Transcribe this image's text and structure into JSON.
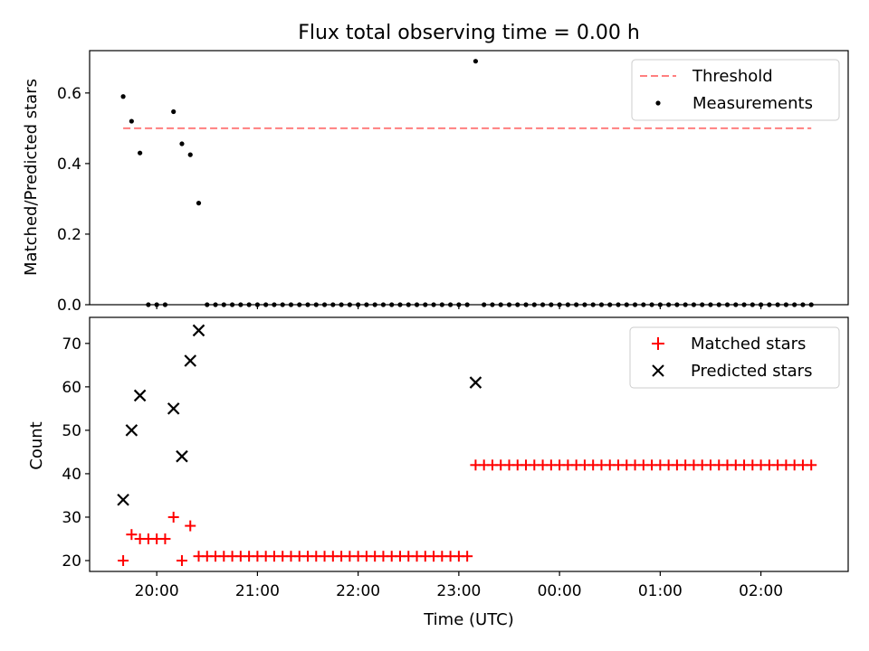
{
  "chart_data": [
    {
      "type": "scatter",
      "title": "Flux total observing time = 0.00 h",
      "ylabel": "Matched/Predicted stars",
      "xlabel": "",
      "ylim": [
        0,
        0.72
      ],
      "yticks": [
        0.0,
        0.2,
        0.4,
        0.6
      ],
      "ytick_labels": [
        "0.0",
        "0.2",
        "0.4",
        "0.6"
      ],
      "grid": false,
      "legend": "top-right",
      "series": [
        {
          "name": "Threshold",
          "kind": "dashed-line",
          "color": "#ff7f7f",
          "x": [
            "19:40",
            "02:30"
          ],
          "y": [
            0.5,
            0.5
          ]
        },
        {
          "name": "Measurements",
          "kind": "points",
          "color": "#000000",
          "x": [
            "19:40",
            "19:45",
            "19:50",
            "19:55",
            "20:00",
            "20:05",
            "20:10",
            "20:15",
            "20:20",
            "20:25",
            "20:30",
            "20:35",
            "20:40",
            "20:45",
            "20:50",
            "20:55",
            "21:00",
            "21:05",
            "21:10",
            "21:15",
            "21:20",
            "21:25",
            "21:30",
            "21:35",
            "21:40",
            "21:45",
            "21:50",
            "21:55",
            "22:00",
            "22:05",
            "22:10",
            "22:15",
            "22:20",
            "22:25",
            "22:30",
            "22:35",
            "22:40",
            "22:45",
            "22:50",
            "22:55",
            "23:00",
            "23:05",
            "23:10",
            "23:15",
            "23:20",
            "23:25",
            "23:30",
            "23:35",
            "23:40",
            "23:45",
            "23:50",
            "23:55",
            "00:00",
            "00:05",
            "00:10",
            "00:15",
            "00:20",
            "00:25",
            "00:30",
            "00:35",
            "00:40",
            "00:45",
            "00:50",
            "00:55",
            "01:00",
            "01:05",
            "01:10",
            "01:15",
            "01:20",
            "01:25",
            "01:30",
            "01:35",
            "01:40",
            "01:45",
            "01:50",
            "01:55",
            "02:00",
            "02:05",
            "02:10",
            "02:15",
            "02:20",
            "02:25",
            "02:30"
          ],
          "y": [
            0.59,
            0.52,
            0.43,
            0.0,
            0.0,
            0.0,
            0.547,
            0.456,
            0.425,
            0.288,
            0.0,
            0.0,
            0.0,
            0.0,
            0.0,
            0.0,
            0.0,
            0.0,
            0.0,
            0.0,
            0.0,
            0.0,
            0.0,
            0.0,
            0.0,
            0.0,
            0.0,
            0.0,
            0.0,
            0.0,
            0.0,
            0.0,
            0.0,
            0.0,
            0.0,
            0.0,
            0.0,
            0.0,
            0.0,
            0.0,
            0.0,
            0.0,
            0.69,
            0.0,
            0.0,
            0.0,
            0.0,
            0.0,
            0.0,
            0.0,
            0.0,
            0.0,
            0.0,
            0.0,
            0.0,
            0.0,
            0.0,
            0.0,
            0.0,
            0.0,
            0.0,
            0.0,
            0.0,
            0.0,
            0.0,
            0.0,
            0.0,
            0.0,
            0.0,
            0.0,
            0.0,
            0.0,
            0.0,
            0.0,
            0.0,
            0.0,
            0.0,
            0.0,
            0.0,
            0.0,
            0.0,
            0.0,
            0.0
          ]
        }
      ]
    },
    {
      "type": "scatter",
      "title": "",
      "ylabel": "Count",
      "xlabel": "Time (UTC)",
      "ylim": [
        17.5,
        76
      ],
      "yticks": [
        20,
        30,
        40,
        50,
        60,
        70
      ],
      "ytick_labels": [
        "20",
        "30",
        "40",
        "50",
        "60",
        "70"
      ],
      "xticks": [
        "20:00",
        "21:00",
        "22:00",
        "23:00",
        "00:00",
        "01:00",
        "02:00"
      ],
      "xtick_labels": [
        "20:00",
        "21:00",
        "22:00",
        "23:00",
        "00:00",
        "01:00",
        "02:00"
      ],
      "xlim": [
        "19:20",
        "02:52"
      ],
      "grid": false,
      "legend": "top-right",
      "series": [
        {
          "name": "Matched stars",
          "marker": "plus",
          "color": "#ff0000",
          "x": [
            "19:40",
            "19:45",
            "19:50",
            "19:55",
            "20:00",
            "20:05",
            "20:10",
            "20:15",
            "20:20",
            "20:25",
            "20:30",
            "20:35",
            "20:40",
            "20:45",
            "20:50",
            "20:55",
            "21:00",
            "21:05",
            "21:10",
            "21:15",
            "21:20",
            "21:25",
            "21:30",
            "21:35",
            "21:40",
            "21:45",
            "21:50",
            "21:55",
            "22:00",
            "22:05",
            "22:10",
            "22:15",
            "22:20",
            "22:25",
            "22:30",
            "22:35",
            "22:40",
            "22:45",
            "22:50",
            "22:55",
            "23:00",
            "23:05",
            "23:10",
            "23:15",
            "23:20",
            "23:25",
            "23:30",
            "23:35",
            "23:40",
            "23:45",
            "23:50",
            "23:55",
            "00:00",
            "00:05",
            "00:10",
            "00:15",
            "00:20",
            "00:25",
            "00:30",
            "00:35",
            "00:40",
            "00:45",
            "00:50",
            "00:55",
            "01:00",
            "01:05",
            "01:10",
            "01:15",
            "01:20",
            "01:25",
            "01:30",
            "01:35",
            "01:40",
            "01:45",
            "01:50",
            "01:55",
            "02:00",
            "02:05",
            "02:10",
            "02:15",
            "02:20",
            "02:25",
            "02:30"
          ],
          "y": [
            20,
            26,
            25,
            25,
            25,
            25,
            30,
            20,
            28,
            21,
            21,
            21,
            21,
            21,
            21,
            21,
            21,
            21,
            21,
            21,
            21,
            21,
            21,
            21,
            21,
            21,
            21,
            21,
            21,
            21,
            21,
            21,
            21,
            21,
            21,
            21,
            21,
            21,
            21,
            21,
            21,
            21,
            42,
            42,
            42,
            42,
            42,
            42,
            42,
            42,
            42,
            42,
            42,
            42,
            42,
            42,
            42,
            42,
            42,
            42,
            42,
            42,
            42,
            42,
            42,
            42,
            42,
            42,
            42,
            42,
            42,
            42,
            42,
            42,
            42,
            42,
            42,
            42,
            42,
            42,
            42,
            42,
            42
          ]
        },
        {
          "name": "Predicted stars",
          "marker": "x",
          "color": "#000000",
          "x": [
            "19:40",
            "19:45",
            "19:50",
            "20:10",
            "20:15",
            "20:20",
            "20:25",
            "23:10"
          ],
          "y": [
            34,
            50,
            58,
            55,
            44,
            66,
            73,
            61
          ]
        }
      ]
    }
  ]
}
